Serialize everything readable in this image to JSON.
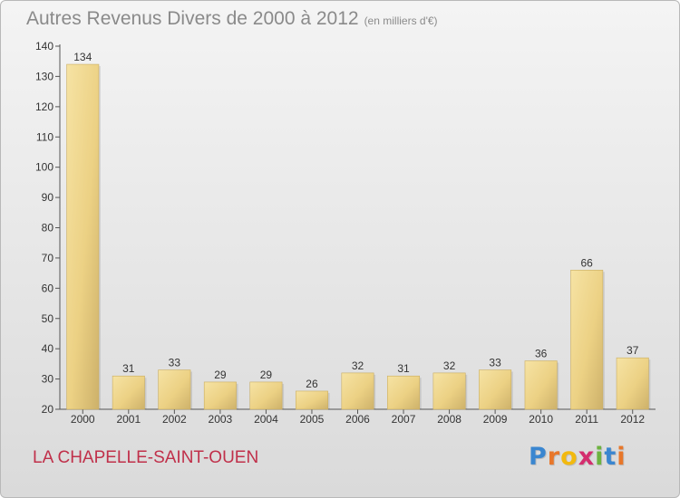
{
  "header": {
    "title": "Autres Revenus Divers de 2000 à 2012",
    "subtitle": "(en milliers d'€)"
  },
  "footer": {
    "city": "LA CHAPELLE-SAINT-OUEN",
    "logo_letters": [
      "P",
      "r",
      "o",
      "x",
      "i",
      "t",
      "i"
    ],
    "logo_colors": [
      "#3a86d0",
      "#e8772a",
      "#f2b90f",
      "#d42d6e",
      "#6db33f",
      "#3a86d0",
      "#e8772a"
    ]
  },
  "colors": {
    "bar": "#f0d68a",
    "bar_edge": "#c9ad62",
    "axis": "#555555"
  },
  "chart_data": {
    "type": "bar",
    "title": "Autres Revenus Divers de 2000 à 2012",
    "xlabel": "",
    "ylabel": "",
    "categories": [
      "2000",
      "2001",
      "2002",
      "2003",
      "2004",
      "2005",
      "2006",
      "2007",
      "2008",
      "2009",
      "2010",
      "2011",
      "2012"
    ],
    "values": [
      134,
      31,
      33,
      29,
      29,
      26,
      32,
      31,
      32,
      33,
      36,
      66,
      37
    ],
    "data_labels": [
      "134",
      "31",
      "33",
      "29",
      "29",
      "26",
      "32",
      "31",
      "32",
      "33",
      "36",
      "66",
      "37"
    ],
    "ylim": [
      20,
      140
    ],
    "yticks": [
      20,
      30,
      40,
      50,
      60,
      70,
      80,
      90,
      100,
      110,
      120,
      130,
      140
    ],
    "ytick_labels": [
      "20",
      "30",
      "40",
      "50",
      "60",
      "70",
      "80",
      "90",
      "100",
      "110",
      "120",
      "130",
      "140"
    ],
    "grid": false,
    "legend": "none"
  }
}
